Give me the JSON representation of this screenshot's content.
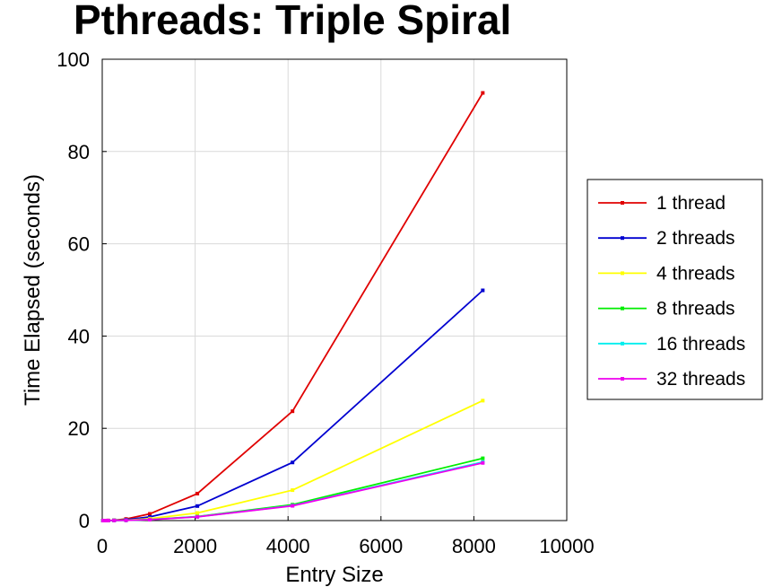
{
  "chart_data": {
    "type": "line",
    "title": "Pthreads: Triple Spiral",
    "xlabel": "Entry Size",
    "ylabel": "Time Elapsed (seconds)",
    "xlim": [
      0,
      10000
    ],
    "ylim": [
      0,
      100
    ],
    "xticks": [
      0,
      2000,
      4000,
      6000,
      8000,
      10000
    ],
    "yticks": [
      0,
      20,
      40,
      60,
      80,
      100
    ],
    "grid": true,
    "legend_position": "right",
    "x": [
      16,
      32,
      64,
      128,
      256,
      512,
      1024,
      2048,
      4096,
      8192
    ],
    "series": [
      {
        "name": "1 thread",
        "color": "#e00000",
        "values": [
          0.0,
          0.0,
          0.0,
          0.02,
          0.08,
          0.35,
          1.45,
          5.85,
          23.7,
          92.7
        ]
      },
      {
        "name": "2 threads",
        "color": "#0000d0",
        "values": [
          0.0,
          0.0,
          0.0,
          0.01,
          0.05,
          0.2,
          0.8,
          3.15,
          12.6,
          49.9
        ]
      },
      {
        "name": "4 threads",
        "color": "#ffff00",
        "values": [
          0.0,
          0.0,
          0.0,
          0.01,
          0.03,
          0.1,
          0.42,
          1.65,
          6.6,
          26.0
        ]
      },
      {
        "name": "8 threads",
        "color": "#00ee00",
        "values": [
          0.0,
          0.0,
          0.0,
          0.0,
          0.02,
          0.06,
          0.22,
          0.87,
          3.45,
          13.5
        ]
      },
      {
        "name": "16 threads",
        "color": "#00eeee",
        "values": [
          0.0,
          0.0,
          0.0,
          0.0,
          0.02,
          0.05,
          0.2,
          0.82,
          3.25,
          12.7
        ]
      },
      {
        "name": "32 threads",
        "color": "#ee00ee",
        "values": [
          0.0,
          0.0,
          0.0,
          0.0,
          0.02,
          0.05,
          0.2,
          0.8,
          3.2,
          12.5
        ]
      }
    ]
  }
}
